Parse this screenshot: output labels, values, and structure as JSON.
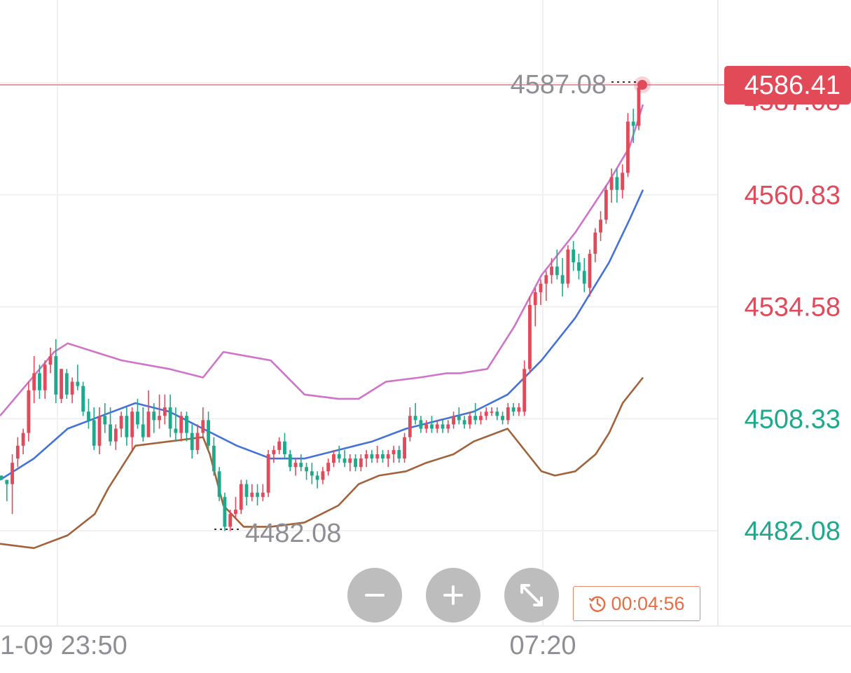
{
  "chart_data": {
    "type": "candlestick",
    "y_ticks": [
      "4560.83",
      "4534.58",
      "4508.33",
      "4482.08"
    ],
    "current_price": "4586.41",
    "current_price_partial_label": "4587.08",
    "high_marker": "4587.08",
    "low_marker": "4482.08",
    "x_ticks": [
      "1-09 23:50",
      "07:20"
    ],
    "ylim": [
      4469.5,
      4606.0
    ],
    "candles": [
      [
        4495,
        4495,
        4494,
        4494
      ],
      [
        4494,
        4494,
        4489,
        4493
      ],
      [
        4493,
        4500,
        4486,
        4498
      ],
      [
        4499,
        4504,
        4497,
        4502
      ],
      [
        4502,
        4506,
        4500,
        4505
      ],
      [
        4505,
        4517,
        4503,
        4515
      ],
      [
        4515,
        4523,
        4512,
        4519
      ],
      [
        4519,
        4521,
        4513,
        4515
      ],
      [
        4515,
        4522,
        4513,
        4521
      ],
      [
        4521,
        4525,
        4519,
        4523
      ],
      [
        4523,
        4527,
        4512,
        4514
      ],
      [
        4513,
        4520,
        4512,
        4520
      ],
      [
        4519,
        4520,
        4513,
        4514
      ],
      [
        4514,
        4518,
        4512,
        4517
      ],
      [
        4517,
        4521,
        4515,
        4516
      ],
      [
        4516,
        4517,
        4509,
        4510
      ],
      [
        4510,
        4513,
        4506,
        4508
      ],
      [
        4508,
        4511,
        4501,
        4502
      ],
      [
        4502,
        4511,
        4500,
        4509
      ],
      [
        4509,
        4512,
        4505,
        4507
      ],
      [
        4507,
        4511,
        4502,
        4503
      ],
      [
        4503,
        4507,
        4501,
        4506
      ],
      [
        4506,
        4510,
        4504,
        4509
      ],
      [
        4509,
        4511,
        4502,
        4504
      ],
      [
        4504,
        4511,
        4501,
        4510
      ],
      [
        4510,
        4513,
        4506,
        4507
      ],
      [
        4507,
        4511,
        4503,
        4504
      ],
      [
        4504,
        4515,
        4504,
        4510
      ],
      [
        4510,
        4512,
        4505,
        4508
      ],
      [
        4508,
        4514,
        4506,
        4509
      ],
      [
        4509,
        4514,
        4507,
        4511
      ],
      [
        4511,
        4514,
        4504,
        4506
      ],
      [
        4506,
        4511,
        4503,
        4505
      ],
      [
        4505,
        4510,
        4503,
        4509
      ],
      [
        4509,
        4510,
        4503,
        4505
      ],
      [
        4505,
        4507,
        4499,
        4501
      ],
      [
        4501,
        4507,
        4500,
        4505
      ],
      [
        4505,
        4511,
        4504,
        4508
      ],
      [
        4508,
        4510,
        4501,
        4502
      ],
      [
        4502,
        4504,
        4495,
        4496
      ],
      [
        4496,
        4497,
        4489,
        4490
      ],
      [
        4490,
        4491,
        4482,
        4483
      ],
      [
        4483,
        4487,
        4482,
        4486
      ],
      [
        4486,
        4490,
        4485,
        4487
      ],
      [
        4487,
        4494,
        4486,
        4493
      ],
      [
        4493,
        4494,
        4488,
        4490
      ],
      [
        4490,
        4493,
        4489,
        4491
      ],
      [
        4491,
        4493,
        4488,
        4490
      ],
      [
        4490,
        4493,
        4489,
        4491
      ],
      [
        4491,
        4501,
        4490,
        4500
      ],
      [
        4500,
        4502,
        4498,
        4501
      ],
      [
        4501,
        4504,
        4500,
        4503
      ],
      [
        4503,
        4505,
        4499,
        4500
      ],
      [
        4500,
        4501,
        4496,
        4497
      ],
      [
        4497,
        4499,
        4495,
        4498
      ],
      [
        4498,
        4500,
        4496,
        4497
      ],
      [
        4497,
        4498,
        4494,
        4496
      ],
      [
        4496,
        4498,
        4493,
        4495
      ],
      [
        4495,
        4496,
        4492,
        4494
      ],
      [
        4494,
        4497,
        4493,
        4496
      ],
      [
        4496,
        4499,
        4495,
        4498
      ],
      [
        4498,
        4501,
        4497,
        4500
      ],
      [
        4500,
        4502,
        4498,
        4499
      ],
      [
        4499,
        4501,
        4497,
        4498
      ],
      [
        4498,
        4500,
        4496,
        4499
      ],
      [
        4499,
        4500,
        4496,
        4497
      ],
      [
        4497,
        4500,
        4496,
        4499
      ],
      [
        4499,
        4501,
        4497,
        4500
      ],
      [
        4500,
        4501,
        4498,
        4499
      ],
      [
        4499,
        4502,
        4498,
        4500
      ],
      [
        4500,
        4501,
        4498,
        4499
      ],
      [
        4499,
        4501,
        4497,
        4500
      ],
      [
        4500,
        4502,
        4498,
        4501
      ],
      [
        4501,
        4502,
        4498,
        4499
      ],
      [
        4499,
        4505,
        4498,
        4504
      ],
      [
        4504,
        4511,
        4503,
        4509
      ],
      [
        4509,
        4512,
        4507,
        4508
      ],
      [
        4508,
        4509,
        4505,
        4506
      ],
      [
        4506,
        4508,
        4505,
        4507
      ],
      [
        4507,
        4509,
        4505,
        4506
      ],
      [
        4506,
        4508,
        4505,
        4507
      ],
      [
        4507,
        4508,
        4505,
        4506
      ],
      [
        4506,
        4508,
        4505,
        4507
      ],
      [
        4507,
        4510,
        4506,
        4509
      ],
      [
        4509,
        4511,
        4507,
        4508
      ],
      [
        4508,
        4509,
        4506,
        4507
      ],
      [
        4507,
        4510,
        4506,
        4509
      ],
      [
        4509,
        4512,
        4507,
        4508
      ],
      [
        4508,
        4510,
        4507,
        4509
      ],
      [
        4509,
        4511,
        4508,
        4510
      ],
      [
        4510,
        4511,
        4509,
        4510
      ],
      [
        4510,
        4511,
        4508,
        4509
      ],
      [
        4509,
        4510,
        4507,
        4508
      ],
      [
        4508,
        4512,
        4507,
        4511
      ],
      [
        4511,
        4512,
        4509,
        4510
      ],
      [
        4510,
        4512,
        4509,
        4511
      ],
      [
        4510,
        4522,
        4509,
        4520
      ],
      [
        4520,
        4537,
        4519,
        4535
      ],
      [
        4535,
        4539,
        4530,
        4538
      ],
      [
        4538,
        4541,
        4535,
        4540
      ],
      [
        4540,
        4543,
        4536,
        4542
      ],
      [
        4542,
        4546,
        4540,
        4544
      ],
      [
        4544,
        4548,
        4541,
        4542
      ],
      [
        4542,
        4546,
        4537,
        4540
      ],
      [
        4540,
        4549,
        4539,
        4548
      ],
      [
        4548,
        4550,
        4543,
        4545
      ],
      [
        4545,
        4547,
        4541,
        4543
      ],
      [
        4543,
        4546,
        4538,
        4540
      ],
      [
        4539,
        4548,
        4537,
        4547
      ],
      [
        4547,
        4553,
        4545,
        4552
      ],
      [
        4552,
        4557,
        4550,
        4555
      ],
      [
        4555,
        4563,
        4554,
        4562
      ],
      [
        4562,
        4567,
        4559,
        4565
      ],
      [
        4565,
        4567,
        4559,
        4562
      ],
      [
        4562,
        4568,
        4560,
        4566
      ],
      [
        4566,
        4580,
        4565,
        4578
      ],
      [
        4578,
        4581,
        4573,
        4577
      ],
      [
        4577,
        4587,
        4576,
        4586
      ]
    ],
    "bb_upper": [
      [
        0,
        4509
      ],
      [
        0.08,
        4524
      ],
      [
        0.1,
        4526
      ],
      [
        0.14,
        4524
      ],
      [
        0.18,
        4522
      ],
      [
        0.25,
        4520
      ],
      [
        0.3,
        4518
      ],
      [
        0.33,
        4524
      ],
      [
        0.4,
        4522
      ],
      [
        0.45,
        4514
      ],
      [
        0.5,
        4513
      ],
      [
        0.53,
        4513
      ],
      [
        0.57,
        4517
      ],
      [
        0.62,
        4518
      ],
      [
        0.66,
        4519
      ],
      [
        0.68,
        4519
      ],
      [
        0.72,
        4520
      ],
      [
        0.76,
        4530
      ],
      [
        0.8,
        4542
      ],
      [
        0.85,
        4552
      ],
      [
        0.9,
        4564
      ],
      [
        0.93,
        4572
      ],
      [
        0.95,
        4582
      ]
    ],
    "bb_mid": [
      [
        0,
        4494
      ],
      [
        0.05,
        4499
      ],
      [
        0.1,
        4506
      ],
      [
        0.15,
        4509
      ],
      [
        0.2,
        4512
      ],
      [
        0.25,
        4510
      ],
      [
        0.3,
        4506
      ],
      [
        0.35,
        4502
      ],
      [
        0.4,
        4499
      ],
      [
        0.45,
        4499
      ],
      [
        0.5,
        4501
      ],
      [
        0.55,
        4503
      ],
      [
        0.6,
        4506
      ],
      [
        0.65,
        4508
      ],
      [
        0.7,
        4510
      ],
      [
        0.75,
        4514
      ],
      [
        0.8,
        4522
      ],
      [
        0.85,
        4532
      ],
      [
        0.9,
        4545
      ],
      [
        0.93,
        4555
      ],
      [
        0.95,
        4562
      ]
    ],
    "bb_lower": [
      [
        0,
        4479
      ],
      [
        0.05,
        4478
      ],
      [
        0.1,
        4481
      ],
      [
        0.14,
        4486
      ],
      [
        0.16,
        4492
      ],
      [
        0.2,
        4502
      ],
      [
        0.25,
        4503
      ],
      [
        0.3,
        4504
      ],
      [
        0.31,
        4500
      ],
      [
        0.33,
        4488
      ],
      [
        0.36,
        4483
      ],
      [
        0.4,
        4483
      ],
      [
        0.45,
        4484
      ],
      [
        0.5,
        4488
      ],
      [
        0.53,
        4493
      ],
      [
        0.56,
        4495
      ],
      [
        0.6,
        4496
      ],
      [
        0.63,
        4498
      ],
      [
        0.67,
        4500
      ],
      [
        0.7,
        4503
      ],
      [
        0.75,
        4506
      ],
      [
        0.78,
        4500
      ],
      [
        0.8,
        4496
      ],
      [
        0.82,
        4495
      ],
      [
        0.85,
        4496
      ],
      [
        0.88,
        4500
      ],
      [
        0.9,
        4505
      ],
      [
        0.92,
        4512
      ],
      [
        0.95,
        4518
      ]
    ],
    "colors": {
      "up": "#e04a5a",
      "down": "#1fa98c",
      "bb_upper": "#cf74c8",
      "bb_mid": "#4472d8",
      "bb_lower": "#a2623a",
      "price_line": "#e07a85",
      "price_label_bg": "#e24a58",
      "axis_red": "#e04a5a",
      "axis_green": "#1fa98c",
      "grid": "#f0f0f0"
    }
  },
  "controls": {
    "zoom_out_icon": "minus-icon",
    "zoom_in_icon": "plus-icon",
    "expand_icon": "expand-icon",
    "countdown": "00:04:56",
    "countdown_icon": "clock-history-icon"
  }
}
